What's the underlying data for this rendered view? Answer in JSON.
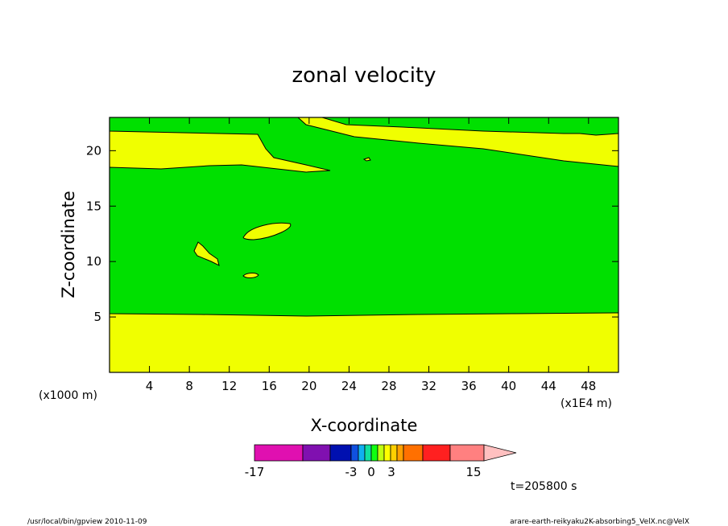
{
  "chart_data": {
    "type": "contour",
    "title": "zonal velocity",
    "xlabel": "X-coordinate",
    "ylabel": "Z-coordinate",
    "x_unit_label": "(x1E4 m)",
    "y_unit_label": "(x1000 m)",
    "xlim": [
      0,
      51
    ],
    "ylim": [
      0,
      23
    ],
    "x_ticks": [
      4,
      8,
      12,
      16,
      20,
      24,
      28,
      32,
      36,
      40,
      44,
      48
    ],
    "y_ticks": [
      5,
      10,
      15,
      20
    ],
    "levels_range": [
      -17,
      15
    ],
    "colorbar": {
      "tick_labels": [
        "-17",
        "-3",
        "0",
        "3",
        "15"
      ],
      "colors": [
        "#e010b0",
        "#8010b0",
        "#0010b0",
        "#1050e0",
        "#10b0f0",
        "#10e0a0",
        "#10ff10",
        "#c0ff10",
        "#ffff00",
        "#ffd000",
        "#ffa000",
        "#ff7000",
        "#ff2020",
        "#ff8080",
        "#ffc0c0"
      ]
    },
    "regions": [
      {
        "value_range": [
          0,
          1.5
        ],
        "color": "#f0ff00",
        "label": "surface layer z < ~5.2"
      },
      {
        "value_range": [
          -1.5,
          0
        ],
        "color": "#00e000",
        "label": "main band z ~5.2 to ~18.5"
      },
      {
        "value_range": [
          0,
          1.5
        ],
        "color": "#f0ff00",
        "label": "upper layer z > ~18.5"
      }
    ],
    "time_label": "t=205800 s"
  },
  "footer": {
    "left": "/usr/local/bin/gpview   2010-11-09",
    "right": "arare-earth-reikyaku2K-absorbing5_VelX.nc@VelX"
  }
}
